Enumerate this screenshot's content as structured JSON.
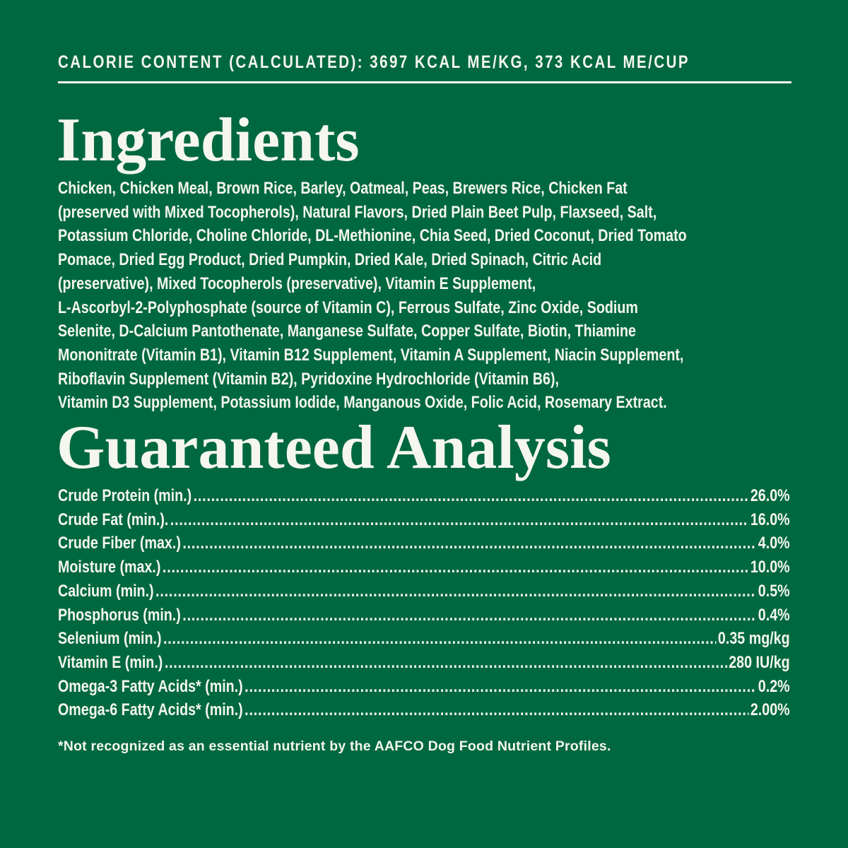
{
  "colors": {
    "background": "#006840",
    "text": "#f5f6ef"
  },
  "calorie_content": "CALORIE CONTENT (CALCULATED): 3697 KCAL ME/KG, 373 KCAL ME/CUP",
  "ingredients": {
    "title": "Ingredients",
    "lines": [
      "Chicken, Chicken Meal, Brown Rice, Barley, Oatmeal, Peas, Brewers Rice, Chicken Fat",
      "(preserved with Mixed Tocopherols), Natural Flavors, Dried Plain Beet Pulp, Flaxseed, Salt,",
      "Potassium Chloride, Choline Chloride, DL-Methionine, Chia Seed, Dried Coconut, Dried Tomato",
      "Pomace, Dried Egg Product, Dried Pumpkin, Dried Kale, Dried Spinach, Citric Acid",
      "(preservative), Mixed Tocopherols (preservative), Vitamin E Supplement,",
      "L-Ascorbyl-2-Polyphosphate (source of Vitamin C), Ferrous Sulfate, Zinc Oxide, Sodium",
      "Selenite, D-Calcium Pantothenate, Manganese Sulfate, Copper Sulfate, Biotin, Thiamine",
      "Mononitrate (Vitamin B1), Vitamin B12 Supplement, Vitamin A Supplement, Niacin Supplement,",
      "Riboflavin Supplement (Vitamin B2), Pyridoxine Hydrochloride (Vitamin B6),",
      "Vitamin D3 Supplement, Potassium Iodide, Manganous Oxide, Folic Acid, Rosemary Extract."
    ]
  },
  "analysis": {
    "title": "Guaranteed Analysis",
    "rows": [
      {
        "label": "Crude Protein (min.)",
        "value": "26.0%"
      },
      {
        "label": "Crude Fat (min.).",
        "value": "16.0%"
      },
      {
        "label": "Crude Fiber (max.)",
        "value": "4.0%"
      },
      {
        "label": "Moisture (max.)",
        "value": "10.0%"
      },
      {
        "label": "Calcium (min.)",
        "value": "0.5%"
      },
      {
        "label": "Phosphorus (min.)",
        "value": "0.4%"
      },
      {
        "label": "Selenium (min.)",
        "value": "0.35 mg/kg"
      },
      {
        "label": "Vitamin E (min.)",
        "value": "280 IU/kg"
      },
      {
        "label": "Omega-3 Fatty Acids* (min.)",
        "value": "0.2%"
      },
      {
        "label": "Omega-6 Fatty Acids* (min.)",
        "value": "2.00%"
      }
    ]
  },
  "footnote": "*Not recognized as an essential nutrient by the AAFCO Dog Food Nutrient Profiles."
}
